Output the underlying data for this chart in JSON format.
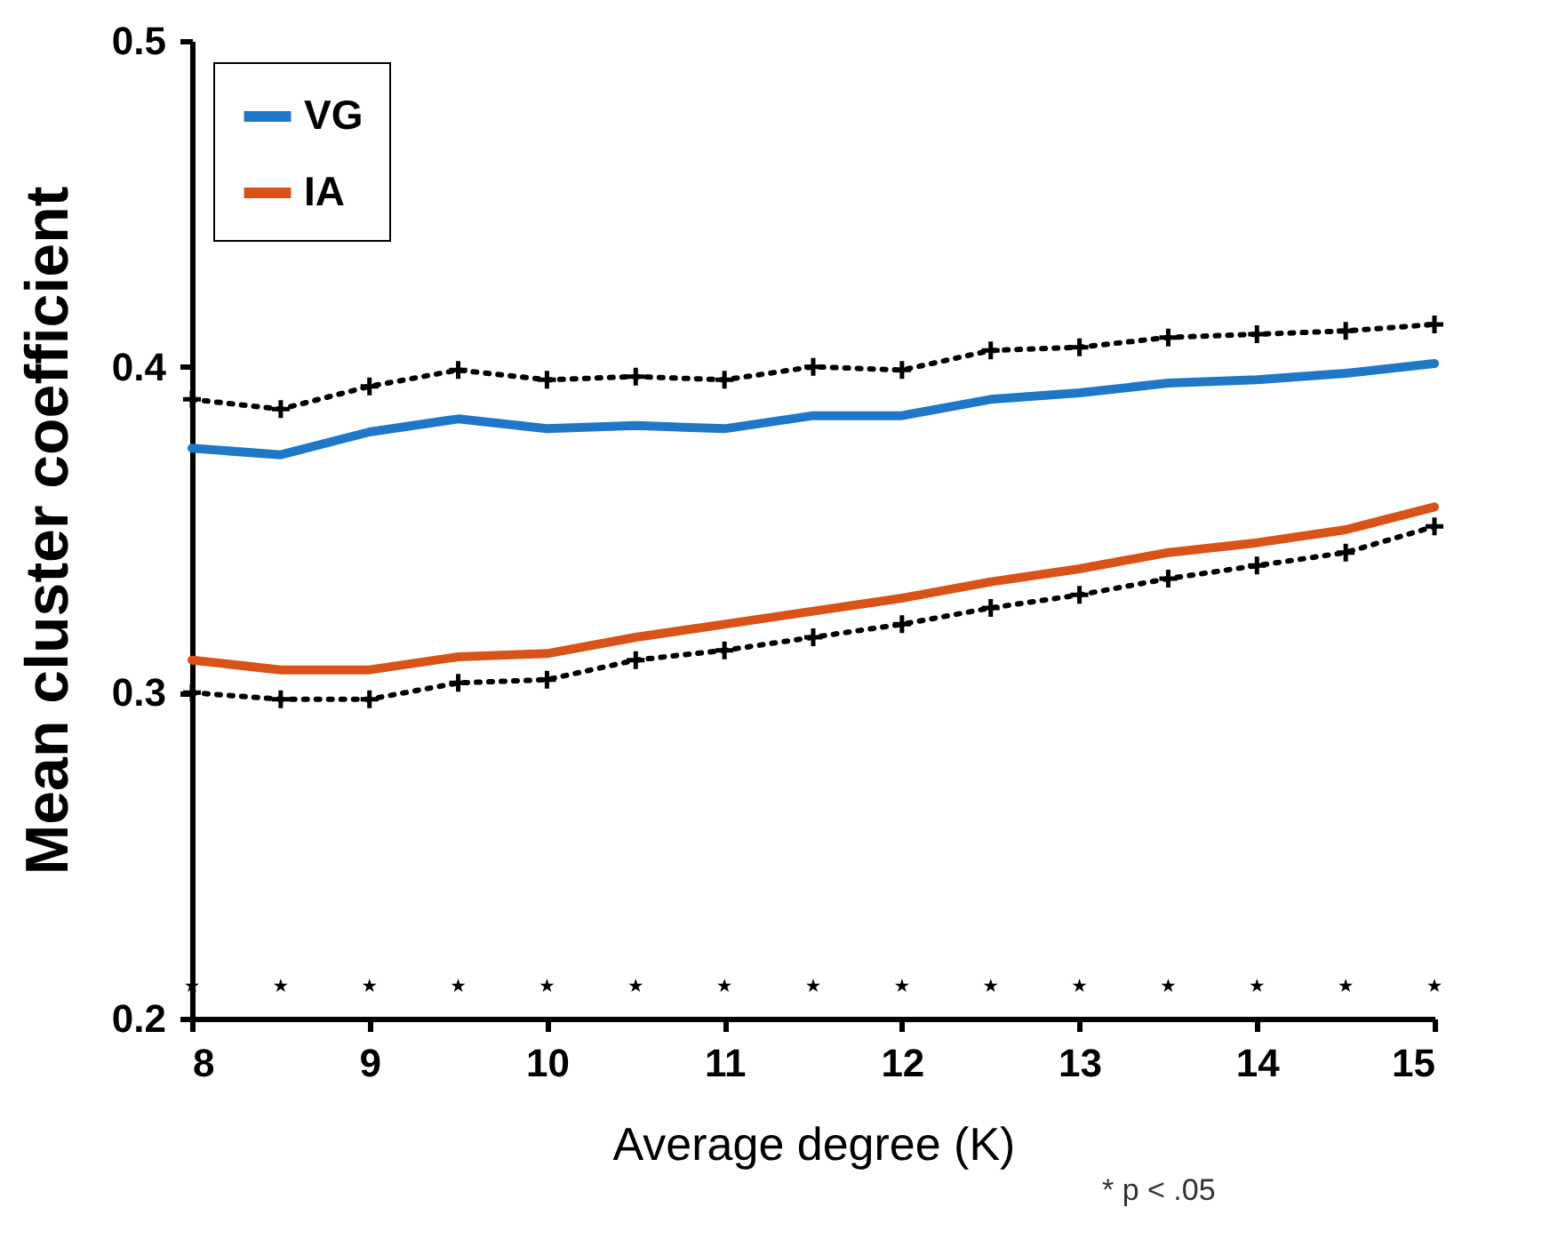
{
  "chart_data": {
    "type": "line",
    "xlabel": "Average degree (K)",
    "ylabel": "Mean cluster coefficient",
    "x": [
      8,
      8.5,
      9,
      9.5,
      10,
      10.5,
      11,
      11.5,
      12,
      12.5,
      13,
      13.5,
      14,
      14.5,
      15
    ],
    "series": [
      {
        "name": "VG",
        "color": "#1f77c8",
        "values": [
          0.375,
          0.373,
          0.38,
          0.384,
          0.381,
          0.382,
          0.381,
          0.385,
          0.385,
          0.39,
          0.392,
          0.395,
          0.396,
          0.398,
          0.401
        ]
      },
      {
        "name": "IA",
        "color": "#d95319",
        "values": [
          0.31,
          0.307,
          0.307,
          0.311,
          0.312,
          0.317,
          0.321,
          0.325,
          0.329,
          0.334,
          0.338,
          0.343,
          0.346,
          0.35,
          0.357
        ]
      },
      {
        "color": "#000000",
        "line_style": "dotted",
        "marker": "cross",
        "values": [
          0.39,
          0.387,
          0.394,
          0.399,
          0.396,
          0.397,
          0.396,
          0.4,
          0.399,
          0.405,
          0.406,
          0.409,
          0.41,
          0.411,
          0.413
        ]
      },
      {
        "color": "#000000",
        "line_style": "dotted",
        "marker": "cross",
        "values": [
          0.3,
          0.298,
          0.298,
          0.303,
          0.304,
          0.31,
          0.313,
          0.317,
          0.321,
          0.326,
          0.33,
          0.335,
          0.339,
          0.343,
          0.351
        ]
      },
      {
        "type": "scatter",
        "color": "#000000",
        "marker": "star",
        "values": [
          0.21,
          0.21,
          0.21,
          0.21,
          0.21,
          0.21,
          0.21,
          0.21,
          0.21,
          0.21,
          0.21,
          0.21,
          0.21,
          0.21,
          0.21
        ]
      }
    ],
    "xlim": [
      8,
      15
    ],
    "xticks": [
      8,
      9,
      10,
      11,
      12,
      13,
      14,
      15
    ],
    "ylim": [
      0.2,
      0.5
    ],
    "yticks": [
      0.2,
      0.3,
      0.4,
      0.5
    ],
    "grid": false,
    "legend": "top left",
    "marker": "none",
    "line_style": "solid",
    "annotations": [
      "* p < .05"
    ]
  }
}
